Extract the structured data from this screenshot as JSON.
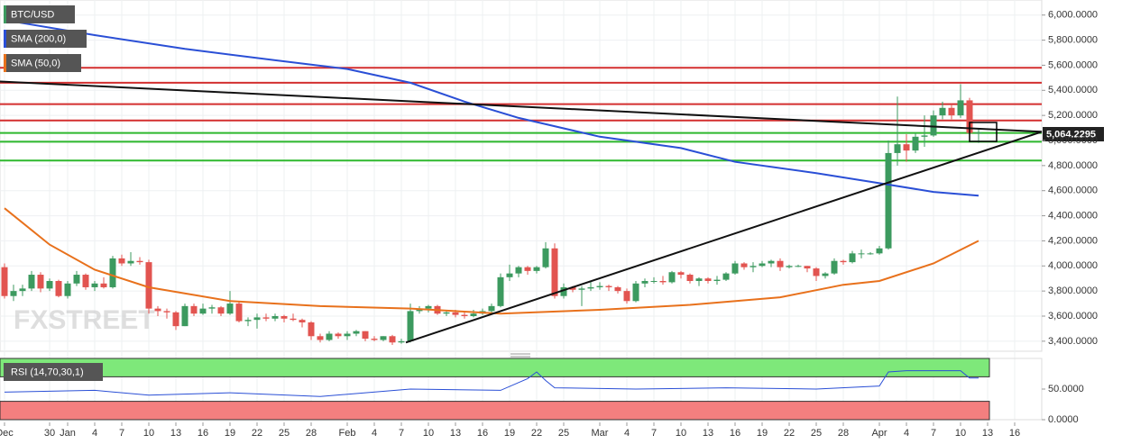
{
  "chart_data": {
    "type": "candlestick",
    "legend": [
      "BTC/USD",
      "SMA (200,0)",
      "SMA (50,0)"
    ],
    "watermark": "FXSTREET",
    "last_price_label": "5,064.2295",
    "up_color": "#3c9a5f",
    "down_color": "#e25450",
    "xlim": [
      -0.5,
      115
    ],
    "xticks": [
      {
        "value": 0,
        "label": "Dec"
      },
      {
        "value": 5,
        "label": "30"
      },
      {
        "value": 7,
        "label": "Jan"
      },
      {
        "value": 10,
        "label": "4"
      },
      {
        "value": 13,
        "label": "7"
      },
      {
        "value": 16,
        "label": "10"
      },
      {
        "value": 19,
        "label": "13"
      },
      {
        "value": 22,
        "label": "16"
      },
      {
        "value": 25,
        "label": "19"
      },
      {
        "value": 28,
        "label": "22"
      },
      {
        "value": 31,
        "label": "25"
      },
      {
        "value": 34,
        "label": "28"
      },
      {
        "value": 38,
        "label": "Feb"
      },
      {
        "value": 41,
        "label": "4"
      },
      {
        "value": 44,
        "label": "7"
      },
      {
        "value": 47,
        "label": "10"
      },
      {
        "value": 50,
        "label": "13"
      },
      {
        "value": 53,
        "label": "16"
      },
      {
        "value": 56,
        "label": "19"
      },
      {
        "value": 59,
        "label": "22"
      },
      {
        "value": 62,
        "label": "25"
      },
      {
        "value": 66,
        "label": "Mar"
      },
      {
        "value": 69,
        "label": "4"
      },
      {
        "value": 72,
        "label": "7"
      },
      {
        "value": 75,
        "label": "10"
      },
      {
        "value": 78,
        "label": "13"
      },
      {
        "value": 81,
        "label": "16"
      },
      {
        "value": 84,
        "label": "19"
      },
      {
        "value": 87,
        "label": "22"
      },
      {
        "value": 90,
        "label": "25"
      },
      {
        "value": 93,
        "label": "28"
      },
      {
        "value": 97,
        "label": "Apr"
      },
      {
        "value": 100,
        "label": "4"
      },
      {
        "value": 103,
        "label": "7"
      },
      {
        "value": 106,
        "label": "10"
      },
      {
        "value": 109,
        "label": "13"
      },
      {
        "value": 112,
        "label": "16"
      }
    ],
    "ylim": [
      3320,
      6120
    ],
    "yticks": [
      {
        "value": 3400,
        "label": "3,400.0000"
      },
      {
        "value": 3600,
        "label": "3,600.0000"
      },
      {
        "value": 3800,
        "label": "3,800.0000"
      },
      {
        "value": 4000,
        "label": "4,000.0000"
      },
      {
        "value": 4200,
        "label": "4,200.0000"
      },
      {
        "value": 4400,
        "label": "4,400.0000"
      },
      {
        "value": 4600,
        "label": "4,600.0000"
      },
      {
        "value": 4800,
        "label": "4,800.0000"
      },
      {
        "value": 5000,
        "label": "5,000.0000"
      },
      {
        "value": 5200,
        "label": "5,200.0000"
      },
      {
        "value": 5400,
        "label": "5,400.0000"
      },
      {
        "value": 5600,
        "label": "5,600.0000"
      },
      {
        "value": 5800,
        "label": "5,800.0000"
      },
      {
        "value": 6000,
        "label": "6,000.0000"
      }
    ],
    "grid": true,
    "ohlc": [
      [
        3990,
        4020,
        3740,
        3760
      ],
      [
        3760,
        3850,
        3720,
        3800
      ],
      [
        3800,
        3850,
        3760,
        3820
      ],
      [
        3820,
        3960,
        3800,
        3930
      ],
      [
        3930,
        3950,
        3790,
        3820
      ],
      [
        3820,
        3900,
        3800,
        3880
      ],
      [
        3880,
        3890,
        3750,
        3760
      ],
      [
        3760,
        3880,
        3740,
        3860
      ],
      [
        3860,
        3960,
        3840,
        3930
      ],
      [
        3930,
        3940,
        3810,
        3830
      ],
      [
        3830,
        3880,
        3800,
        3860
      ],
      [
        3860,
        3910,
        3820,
        3830
      ],
      [
        3830,
        4080,
        3820,
        4060
      ],
      [
        4060,
        4090,
        4000,
        4020
      ],
      [
        4020,
        4110,
        4000,
        4040
      ],
      [
        4040,
        4070,
        4010,
        4030
      ],
      [
        4030,
        4050,
        3620,
        3660
      ],
      [
        3660,
        3680,
        3600,
        3640
      ],
      [
        3640,
        3660,
        3580,
        3630
      ],
      [
        3630,
        3640,
        3490,
        3520
      ],
      [
        3520,
        3700,
        3520,
        3680
      ],
      [
        3680,
        3700,
        3600,
        3620
      ],
      [
        3620,
        3700,
        3610,
        3660
      ],
      [
        3660,
        3690,
        3620,
        3670
      ],
      [
        3670,
        3680,
        3600,
        3620
      ],
      [
        3620,
        3800,
        3610,
        3700
      ],
      [
        3700,
        3720,
        3550,
        3560
      ],
      [
        3560,
        3590,
        3520,
        3570
      ],
      [
        3570,
        3620,
        3500,
        3590
      ],
      [
        3590,
        3620,
        3560,
        3580
      ],
      [
        3580,
        3620,
        3560,
        3600
      ],
      [
        3600,
        3610,
        3550,
        3580
      ],
      [
        3580,
        3620,
        3560,
        3570
      ],
      [
        3570,
        3580,
        3510,
        3550
      ],
      [
        3550,
        3560,
        3410,
        3440
      ],
      [
        3440,
        3460,
        3390,
        3410
      ],
      [
        3410,
        3480,
        3400,
        3460
      ],
      [
        3460,
        3470,
        3420,
        3440
      ],
      [
        3440,
        3480,
        3410,
        3460
      ],
      [
        3460,
        3490,
        3440,
        3480
      ],
      [
        3480,
        3480,
        3400,
        3420
      ],
      [
        3420,
        3440,
        3400,
        3410
      ],
      [
        3410,
        3440,
        3400,
        3440
      ],
      [
        3440,
        3450,
        3370,
        3390
      ],
      [
        3390,
        3420,
        3380,
        3400
      ],
      [
        3400,
        3700,
        3390,
        3640
      ],
      [
        3640,
        3680,
        3620,
        3660
      ],
      [
        3660,
        3690,
        3630,
        3680
      ],
      [
        3680,
        3690,
        3610,
        3620
      ],
      [
        3620,
        3650,
        3600,
        3630
      ],
      [
        3630,
        3650,
        3590,
        3610
      ],
      [
        3610,
        3630,
        3580,
        3600
      ],
      [
        3600,
        3650,
        3590,
        3620
      ],
      [
        3620,
        3660,
        3610,
        3640
      ],
      [
        3640,
        3700,
        3620,
        3680
      ],
      [
        3680,
        3940,
        3670,
        3910
      ],
      [
        3910,
        4010,
        3880,
        3940
      ],
      [
        3940,
        4000,
        3910,
        3990
      ],
      [
        3990,
        4000,
        3930,
        3960
      ],
      [
        3960,
        4000,
        3940,
        3990
      ],
      [
        3990,
        4190,
        3980,
        4140
      ],
      [
        4140,
        4180,
        3740,
        3760
      ],
      [
        3760,
        3860,
        3740,
        3830
      ],
      [
        3830,
        3840,
        3790,
        3810
      ],
      [
        3810,
        3840,
        3680,
        3820
      ],
      [
        3820,
        3880,
        3800,
        3830
      ],
      [
        3830,
        3870,
        3810,
        3840
      ],
      [
        3840,
        3850,
        3800,
        3830
      ],
      [
        3830,
        3840,
        3780,
        3800
      ],
      [
        3800,
        3820,
        3700,
        3720
      ],
      [
        3720,
        3880,
        3710,
        3860
      ],
      [
        3860,
        3900,
        3830,
        3880
      ],
      [
        3880,
        3910,
        3860,
        3880
      ],
      [
        3880,
        3920,
        3850,
        3870
      ],
      [
        3870,
        3960,
        3860,
        3950
      ],
      [
        3950,
        3960,
        3900,
        3930
      ],
      [
        3930,
        3940,
        3860,
        3880
      ],
      [
        3880,
        3910,
        3840,
        3900
      ],
      [
        3900,
        3910,
        3860,
        3880
      ],
      [
        3880,
        3920,
        3850,
        3890
      ],
      [
        3890,
        3950,
        3880,
        3940
      ],
      [
        3940,
        4040,
        3930,
        4020
      ],
      [
        4020,
        4030,
        3970,
        3990
      ],
      [
        3990,
        4030,
        3950,
        4000
      ],
      [
        4000,
        4040,
        3990,
        4020
      ],
      [
        4020,
        4050,
        3990,
        4040
      ],
      [
        4040,
        4060,
        3960,
        3990
      ],
      [
        3990,
        4010,
        3980,
        4000
      ],
      [
        4000,
        4010,
        3990,
        4000
      ],
      [
        4000,
        4000,
        3950,
        3980
      ],
      [
        3980,
        3990,
        3880,
        3920
      ],
      [
        3920,
        3950,
        3900,
        3940
      ],
      [
        3940,
        4060,
        3930,
        4040
      ],
      [
        4040,
        4050,
        4010,
        4030
      ],
      [
        4030,
        4120,
        4020,
        4100
      ],
      [
        4100,
        4130,
        4060,
        4100
      ],
      [
        4100,
        4110,
        4090,
        4100
      ],
      [
        4100,
        4160,
        4090,
        4140
      ],
      [
        4140,
        5000,
        4130,
        4900
      ],
      [
        4900,
        5350,
        4800,
        4970
      ],
      [
        4970,
        5050,
        4830,
        4920
      ],
      [
        4920,
        5060,
        4900,
        5030
      ],
      [
        5030,
        5200,
        4950,
        5040
      ],
      [
        5040,
        5240,
        5030,
        5200
      ],
      [
        5200,
        5310,
        5170,
        5260
      ],
      [
        5260,
        5290,
        5170,
        5200
      ],
      [
        5200,
        5450,
        5180,
        5320
      ],
      [
        5320,
        5340,
        5020,
        5060
      ],
      [
        5060,
        5100,
        4980,
        5064.2295
      ]
    ],
    "series": [
      {
        "name": "SMA (200,0)",
        "color": "#2a4fd6",
        "x": [
          0,
          10,
          20,
          30,
          38,
          45,
          51,
          57,
          66,
          75,
          81,
          90,
          97,
          103,
          108
        ],
        "values": [
          5960,
          5840,
          5730,
          5640,
          5570,
          5460,
          5310,
          5180,
          5030,
          4940,
          4830,
          4740,
          4660,
          4590,
          4560
        ]
      },
      {
        "name": "SMA (50,0)",
        "color": "#e8711c",
        "x": [
          0,
          5,
          10,
          16,
          25,
          35,
          45,
          55,
          66,
          76,
          86,
          93,
          97,
          103,
          108
        ],
        "values": [
          4460,
          4170,
          3970,
          3830,
          3720,
          3680,
          3660,
          3620,
          3650,
          3690,
          3750,
          3850,
          3880,
          4020,
          4200
        ]
      }
    ],
    "hlines": [
      {
        "value": 5580,
        "color": "#d32f2f"
      },
      {
        "value": 5460,
        "color": "#d32f2f"
      },
      {
        "value": 5290,
        "color": "#d32f2f"
      },
      {
        "value": 5160,
        "color": "#d32f2f"
      },
      {
        "value": 5060,
        "color": "#2eb82e"
      },
      {
        "value": 4990,
        "color": "#2eb82e"
      },
      {
        "value": 4840,
        "color": "#2eb82e"
      }
    ],
    "trendlines": [
      {
        "x": [
          -0.5,
          115
        ],
        "values": [
          5470,
          5070
        ]
      },
      {
        "x": [
          44.5,
          115
        ],
        "values": [
          3390,
          5070
        ]
      }
    ],
    "rsi": {
      "name": "RSI (14,70,30,1)",
      "color": "#2a4fd6",
      "ylim": [
        0,
        100
      ],
      "overbought": 70,
      "oversold": 30,
      "yticks": [
        {
          "value": 50,
          "label": "50.0000"
        },
        {
          "value": 0,
          "label": "0.0000"
        }
      ],
      "x": [
        0,
        10,
        16,
        25,
        35,
        45,
        55,
        58,
        59,
        60,
        61,
        70,
        80,
        90,
        97,
        98,
        100,
        106,
        107,
        108
      ],
      "values": [
        45,
        48,
        40,
        44,
        38,
        50,
        48,
        67,
        78,
        64,
        52,
        50,
        52,
        50,
        55,
        78,
        80,
        80,
        68,
        68
      ]
    }
  }
}
